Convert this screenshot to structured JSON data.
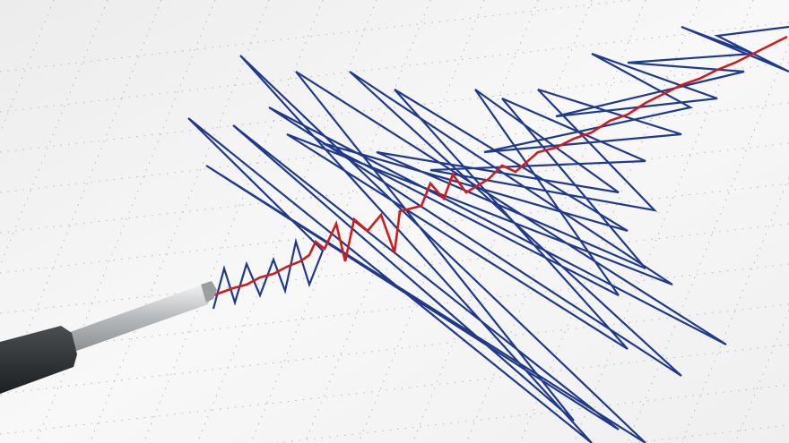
{
  "colors": {
    "paper": "#f5f5f5",
    "grid_dots": "#b8b8b8",
    "trace_blue": "#1f3a8a",
    "trace_red": "#d01c1c",
    "stylus_body": "#2e3133",
    "stylus_rod": "#c9ccce"
  }
}
